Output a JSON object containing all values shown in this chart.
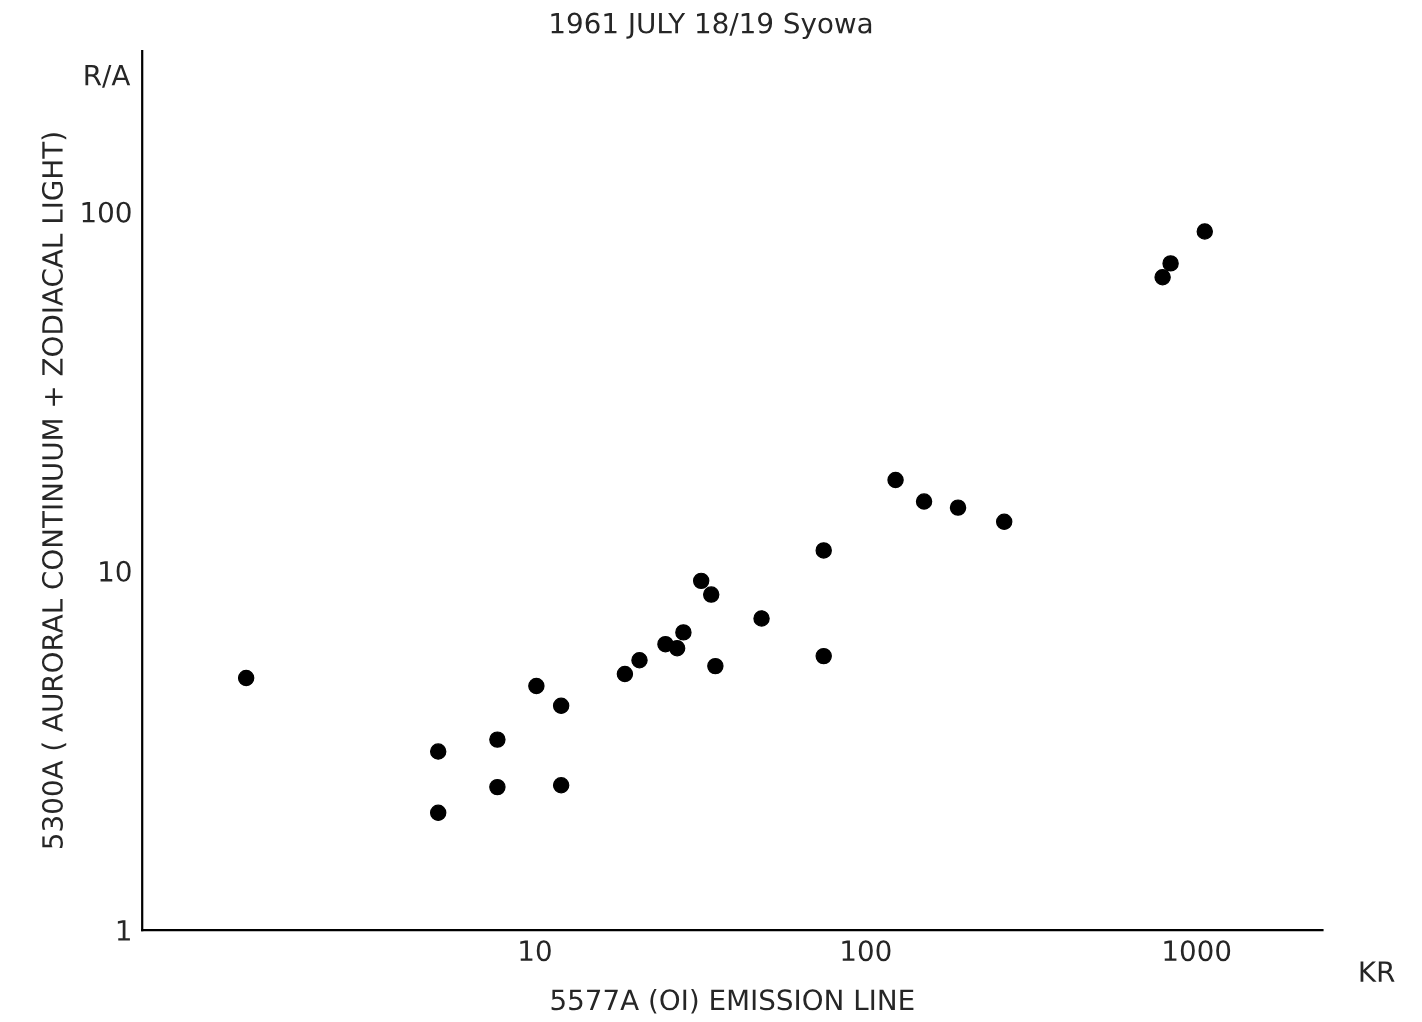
{
  "chart_data": {
    "type": "scatter",
    "title": "1961 JULY 18/19 Syowa",
    "xlabel": "5577A (OI) EMISSION LINE",
    "ylabel": "5300A ( AURORAL CONTINUUM + ZODIACAL LIGHT)",
    "annotations": [
      "R/A",
      "KR"
    ],
    "log": "xy",
    "grid": false,
    "marker": "circle",
    "xlim": [
      0.65,
      2400
    ],
    "ylim": [
      1,
      280
    ],
    "xticks": [
      10,
      100,
      1000
    ],
    "yticks": [
      1,
      10,
      100
    ],
    "x": [
      1.34,
      5.1,
      5.1,
      7.7,
      7.7,
      10.1,
      12.0,
      12.0,
      18.7,
      20.7,
      24.8,
      26.9,
      28.1,
      31.8,
      34.1,
      35.1,
      48.4,
      74.6,
      74.6,
      123,
      150,
      190,
      262,
      789,
      834,
      1058
    ],
    "series": [
      {
        "color": "#000000",
        "values": [
          5.03,
          3.14,
          2.12,
          3.39,
          2.5,
          4.78,
          4.21,
          2.53,
          5.16,
          5.64,
          6.25,
          6.09,
          6.74,
          9.38,
          8.59,
          5.43,
          7.37,
          11.4,
          5.79,
          17.9,
          15.6,
          15.0,
          13.7,
          65.7,
          71.8,
          88.1
        ]
      }
    ]
  }
}
